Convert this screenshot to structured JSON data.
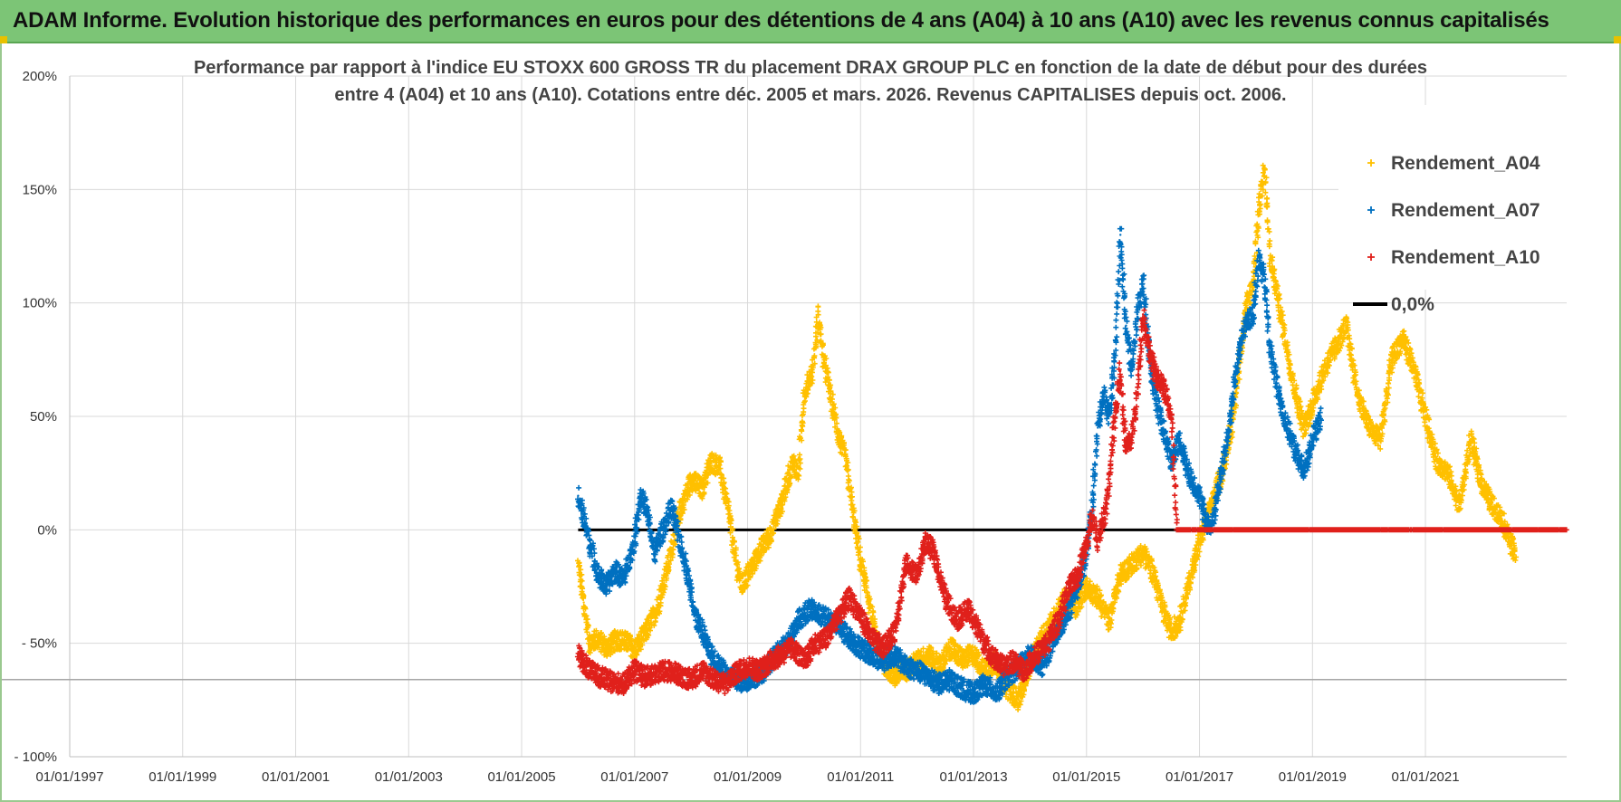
{
  "header": {
    "title": "ADAM Informe. Evolution historique des performances en euros pour des détentions de 4 ans (A04) à 10 ans (A10) avec les revenus connus capitalisés"
  },
  "chart_data": {
    "type": "scatter",
    "title_line1": "Performance par rapport à l'indice EU STOXX 600 GROSS TR  du placement DRAX GROUP PLC en fonction de la date de début pour des durées",
    "title_line2": "entre 4 (A04) et 10 ans (A10). Cotations entre déc. 2005 et mars. 2026. Revenus CAPITALISES depuis oct. 2006.",
    "x_axis": {
      "min": 1997.0,
      "max": 2023.5,
      "ticks": [
        1997,
        1999,
        2001,
        2003,
        2005,
        2007,
        2009,
        2011,
        2013,
        2015,
        2017,
        2019,
        2021
      ],
      "tick_labels": [
        "01/01/1997",
        "01/01/1999",
        "01/01/2001",
        "01/01/2003",
        "01/01/2005",
        "01/01/2007",
        "01/01/2009",
        "01/01/2011",
        "01/01/2013",
        "01/01/2015",
        "01/01/2017",
        "01/01/2019",
        "01/01/2021"
      ]
    },
    "y_axis": {
      "min": -100,
      "max": 200,
      "ticks": [
        -100,
        -50,
        0,
        50,
        100,
        150,
        200
      ],
      "tick_labels": [
        "- 100%",
        "- 50%",
        "0%",
        "50%",
        "100%",
        "150%",
        "200%"
      ]
    },
    "reference_line": {
      "name": "0,0%",
      "value": 0,
      "x_start": 2006.0,
      "x_end": 2023.5,
      "color": "#000000"
    },
    "extra_hline": -66,
    "series": [
      {
        "name": "Rendement_A04",
        "color": "#ffc000",
        "points": [
          [
            2006.0,
            -15
          ],
          [
            2006.1,
            -32
          ],
          [
            2006.2,
            -50
          ],
          [
            2006.35,
            -48
          ],
          [
            2006.5,
            -52
          ],
          [
            2006.7,
            -48
          ],
          [
            2006.9,
            -50
          ],
          [
            2007.0,
            -53
          ],
          [
            2007.2,
            -45
          ],
          [
            2007.4,
            -35
          ],
          [
            2007.6,
            -15
          ],
          [
            2007.8,
            8
          ],
          [
            2008.0,
            22
          ],
          [
            2008.2,
            18
          ],
          [
            2008.35,
            30
          ],
          [
            2008.5,
            28
          ],
          [
            2008.65,
            10
          ],
          [
            2008.8,
            -15
          ],
          [
            2008.9,
            -25
          ],
          [
            2009.0,
            -20
          ],
          [
            2009.2,
            -10
          ],
          [
            2009.4,
            -2
          ],
          [
            2009.6,
            12
          ],
          [
            2009.8,
            30
          ],
          [
            2009.9,
            25
          ],
          [
            2010.0,
            60
          ],
          [
            2010.15,
            70
          ],
          [
            2010.25,
            95
          ],
          [
            2010.35,
            75
          ],
          [
            2010.5,
            55
          ],
          [
            2010.6,
            42
          ],
          [
            2010.75,
            30
          ],
          [
            2010.85,
            10
          ],
          [
            2011.0,
            -15
          ],
          [
            2011.1,
            -25
          ],
          [
            2011.25,
            -45
          ],
          [
            2011.4,
            -58
          ],
          [
            2011.6,
            -65
          ],
          [
            2011.8,
            -62
          ],
          [
            2012.0,
            -58
          ],
          [
            2012.2,
            -55
          ],
          [
            2012.4,
            -60
          ],
          [
            2012.6,
            -52
          ],
          [
            2012.8,
            -57
          ],
          [
            2013.0,
            -55
          ],
          [
            2013.2,
            -62
          ],
          [
            2013.4,
            -58
          ],
          [
            2013.6,
            -70
          ],
          [
            2013.8,
            -75
          ],
          [
            2014.0,
            -60
          ],
          [
            2014.2,
            -48
          ],
          [
            2014.4,
            -40
          ],
          [
            2014.6,
            -30
          ],
          [
            2014.8,
            -35
          ],
          [
            2015.0,
            -25
          ],
          [
            2015.2,
            -30
          ],
          [
            2015.4,
            -40
          ],
          [
            2015.6,
            -20
          ],
          [
            2015.8,
            -15
          ],
          [
            2016.0,
            -10
          ],
          [
            2016.2,
            -20
          ],
          [
            2016.35,
            -35
          ],
          [
            2016.5,
            -45
          ],
          [
            2016.65,
            -40
          ],
          [
            2016.8,
            -25
          ],
          [
            2017.0,
            -5
          ],
          [
            2017.2,
            10
          ],
          [
            2017.4,
            25
          ],
          [
            2017.6,
            50
          ],
          [
            2017.8,
            95
          ],
          [
            2017.95,
            110
          ],
          [
            2018.05,
            140
          ],
          [
            2018.15,
            160
          ],
          [
            2018.25,
            120
          ],
          [
            2018.4,
            100
          ],
          [
            2018.55,
            80
          ],
          [
            2018.7,
            60
          ],
          [
            2018.85,
            45
          ],
          [
            2019.0,
            55
          ],
          [
            2019.2,
            70
          ],
          [
            2019.4,
            80
          ],
          [
            2019.6,
            90
          ],
          [
            2019.8,
            60
          ],
          [
            2020.0,
            45
          ],
          [
            2020.2,
            40
          ],
          [
            2020.4,
            75
          ],
          [
            2020.6,
            85
          ],
          [
            2020.8,
            70
          ],
          [
            2021.0,
            50
          ],
          [
            2021.2,
            30
          ],
          [
            2021.4,
            25
          ],
          [
            2021.6,
            10
          ],
          [
            2021.8,
            40
          ],
          [
            2022.0,
            20
          ],
          [
            2022.2,
            10
          ],
          [
            2022.35,
            5
          ],
          [
            2022.5,
            -5
          ],
          [
            2022.6,
            -12
          ]
        ]
      },
      {
        "name": "Rendement_A07",
        "color": "#0070c0",
        "points": [
          [
            2006.0,
            15
          ],
          [
            2006.1,
            5
          ],
          [
            2006.2,
            -5
          ],
          [
            2006.35,
            -20
          ],
          [
            2006.5,
            -25
          ],
          [
            2006.65,
            -18
          ],
          [
            2006.8,
            -22
          ],
          [
            2007.0,
            -5
          ],
          [
            2007.1,
            15
          ],
          [
            2007.2,
            10
          ],
          [
            2007.35,
            -10
          ],
          [
            2007.5,
            0
          ],
          [
            2007.65,
            10
          ],
          [
            2007.8,
            -5
          ],
          [
            2007.9,
            -15
          ],
          [
            2008.0,
            -28
          ],
          [
            2008.1,
            -40
          ],
          [
            2008.2,
            -45
          ],
          [
            2008.35,
            -55
          ],
          [
            2008.5,
            -60
          ],
          [
            2008.7,
            -65
          ],
          [
            2008.9,
            -67
          ],
          [
            2009.1,
            -65
          ],
          [
            2009.3,
            -62
          ],
          [
            2009.5,
            -55
          ],
          [
            2009.7,
            -50
          ],
          [
            2009.9,
            -40
          ],
          [
            2010.1,
            -35
          ],
          [
            2010.3,
            -38
          ],
          [
            2010.5,
            -40
          ],
          [
            2010.7,
            -45
          ],
          [
            2010.9,
            -50
          ],
          [
            2011.0,
            -52
          ],
          [
            2011.2,
            -55
          ],
          [
            2011.4,
            -58
          ],
          [
            2011.6,
            -55
          ],
          [
            2011.8,
            -60
          ],
          [
            2012.0,
            -62
          ],
          [
            2012.2,
            -65
          ],
          [
            2012.4,
            -68
          ],
          [
            2012.6,
            -66
          ],
          [
            2012.8,
            -70
          ],
          [
            2013.0,
            -72
          ],
          [
            2013.2,
            -68
          ],
          [
            2013.4,
            -72
          ],
          [
            2013.6,
            -65
          ],
          [
            2013.8,
            -60
          ],
          [
            2014.0,
            -55
          ],
          [
            2014.2,
            -60
          ],
          [
            2014.4,
            -50
          ],
          [
            2014.6,
            -40
          ],
          [
            2014.8,
            -30
          ],
          [
            2015.0,
            -10
          ],
          [
            2015.1,
            10
          ],
          [
            2015.2,
            45
          ],
          [
            2015.3,
            60
          ],
          [
            2015.4,
            50
          ],
          [
            2015.5,
            75
          ],
          [
            2015.6,
            130
          ],
          [
            2015.7,
            90
          ],
          [
            2015.8,
            70
          ],
          [
            2015.9,
            95
          ],
          [
            2016.0,
            110
          ],
          [
            2016.1,
            80
          ],
          [
            2016.2,
            60
          ],
          [
            2016.35,
            45
          ],
          [
            2016.5,
            30
          ],
          [
            2016.65,
            40
          ],
          [
            2016.8,
            25
          ],
          [
            2017.0,
            15
          ],
          [
            2017.1,
            5
          ],
          [
            2017.2,
            0
          ],
          [
            2017.35,
            20
          ],
          [
            2017.5,
            40
          ],
          [
            2017.65,
            70
          ],
          [
            2017.8,
            90
          ],
          [
            2017.95,
            95
          ],
          [
            2018.05,
            120
          ],
          [
            2018.15,
            110
          ],
          [
            2018.25,
            80
          ],
          [
            2018.4,
            60
          ],
          [
            2018.55,
            45
          ],
          [
            2018.7,
            35
          ],
          [
            2018.85,
            25
          ],
          [
            2019.0,
            40
          ],
          [
            2019.15,
            50
          ]
        ]
      },
      {
        "name": "Rendement_A10",
        "color": "#e0201b",
        "points": [
          [
            2006.0,
            -55
          ],
          [
            2006.2,
            -62
          ],
          [
            2006.4,
            -65
          ],
          [
            2006.6,
            -67
          ],
          [
            2006.8,
            -68
          ],
          [
            2007.0,
            -62
          ],
          [
            2007.2,
            -65
          ],
          [
            2007.4,
            -63
          ],
          [
            2007.6,
            -62
          ],
          [
            2007.8,
            -64
          ],
          [
            2008.0,
            -66
          ],
          [
            2008.2,
            -62
          ],
          [
            2008.4,
            -66
          ],
          [
            2008.6,
            -68
          ],
          [
            2008.8,
            -63
          ],
          [
            2009.0,
            -60
          ],
          [
            2009.2,
            -62
          ],
          [
            2009.4,
            -58
          ],
          [
            2009.6,
            -55
          ],
          [
            2009.8,
            -52
          ],
          [
            2010.0,
            -58
          ],
          [
            2010.2,
            -50
          ],
          [
            2010.4,
            -48
          ],
          [
            2010.6,
            -38
          ],
          [
            2010.8,
            -30
          ],
          [
            2011.0,
            -38
          ],
          [
            2011.2,
            -48
          ],
          [
            2011.4,
            -52
          ],
          [
            2011.6,
            -45
          ],
          [
            2011.8,
            -15
          ],
          [
            2012.0,
            -20
          ],
          [
            2012.15,
            -5
          ],
          [
            2012.3,
            -10
          ],
          [
            2012.5,
            -30
          ],
          [
            2012.7,
            -40
          ],
          [
            2012.9,
            -35
          ],
          [
            2013.1,
            -45
          ],
          [
            2013.3,
            -55
          ],
          [
            2013.5,
            -60
          ],
          [
            2013.7,
            -58
          ],
          [
            2013.9,
            -62
          ],
          [
            2014.1,
            -55
          ],
          [
            2014.3,
            -50
          ],
          [
            2014.5,
            -40
          ],
          [
            2014.7,
            -25
          ],
          [
            2014.85,
            -20
          ],
          [
            2015.0,
            -5
          ],
          [
            2015.1,
            5
          ],
          [
            2015.2,
            -5
          ],
          [
            2015.35,
            10
          ],
          [
            2015.5,
            50
          ],
          [
            2015.6,
            70
          ],
          [
            2015.7,
            35
          ],
          [
            2015.8,
            40
          ],
          [
            2015.9,
            60
          ],
          [
            2016.0,
            95
          ],
          [
            2016.1,
            80
          ],
          [
            2016.2,
            70
          ],
          [
            2016.3,
            65
          ],
          [
            2016.4,
            60
          ],
          [
            2016.5,
            50
          ],
          [
            2016.6,
            0
          ],
          [
            2017.0,
            0
          ],
          [
            2018.0,
            0
          ],
          [
            2019.0,
            0
          ],
          [
            2020.0,
            0
          ],
          [
            2021.0,
            0
          ],
          [
            2022.0,
            0
          ],
          [
            2023.0,
            0
          ],
          [
            2023.5,
            0
          ]
        ]
      }
    ],
    "legend": {
      "position": "top-right",
      "entries": [
        "Rendement_A04",
        "Rendement_A07",
        "Rendement_A10",
        "0,0%"
      ]
    },
    "grid": true
  }
}
